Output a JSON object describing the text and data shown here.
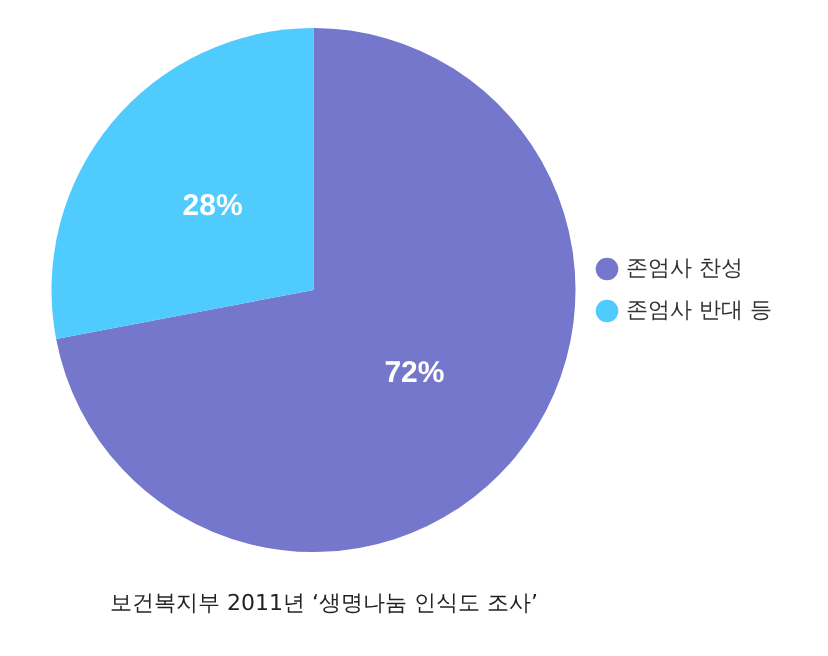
{
  "chart_data": {
    "type": "pie",
    "categories": [
      "존엄사 찬성",
      "존엄사 반대 등"
    ],
    "values": [
      72,
      28
    ],
    "colors": [
      "#7477cb",
      "#4fcbfd"
    ],
    "value_labels": [
      "72%",
      "28%"
    ],
    "legend": "right",
    "annotations": [
      "보건복지부 2011년 ‘생명나눔 인식도 조사’"
    ]
  }
}
